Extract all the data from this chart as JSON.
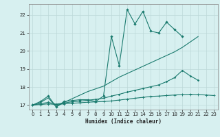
{
  "xlabel": "Humidex (Indice chaleur)",
  "x": [
    0,
    1,
    2,
    3,
    4,
    5,
    6,
    7,
    8,
    9,
    10,
    11,
    12,
    13,
    14,
    15,
    16,
    17,
    18,
    19,
    20,
    21,
    22,
    23
  ],
  "line1": [
    17.0,
    17.2,
    17.5,
    16.9,
    17.2,
    17.25,
    17.3,
    17.3,
    17.2,
    17.5,
    20.8,
    19.2,
    22.3,
    21.5,
    22.2,
    21.1,
    21.0,
    21.6,
    21.2,
    20.8,
    null,
    null,
    null,
    null
  ],
  "line2": [
    17.0,
    17.15,
    17.4,
    16.9,
    17.15,
    17.35,
    17.55,
    17.75,
    17.9,
    18.05,
    18.3,
    18.55,
    18.75,
    18.95,
    19.15,
    19.35,
    19.55,
    19.75,
    19.95,
    20.2,
    20.5,
    20.8,
    null,
    null
  ],
  "line3": [
    17.0,
    17.08,
    17.15,
    17.05,
    17.12,
    17.18,
    17.22,
    17.27,
    17.32,
    17.38,
    17.5,
    17.6,
    17.72,
    17.82,
    17.92,
    18.02,
    18.12,
    18.3,
    18.52,
    18.92,
    18.62,
    18.38,
    null,
    null
  ],
  "line4": [
    17.0,
    17.03,
    17.07,
    17.03,
    17.07,
    17.1,
    17.13,
    17.16,
    17.18,
    17.2,
    17.23,
    17.28,
    17.33,
    17.38,
    17.43,
    17.48,
    17.5,
    17.53,
    17.56,
    17.58,
    17.6,
    17.58,
    17.56,
    17.53
  ],
  "line_color": "#1a7a6e",
  "bg_color": "#d7f0f0",
  "grid_color": "#bcd8d8",
  "ylim": [
    16.75,
    22.6
  ],
  "xlim": [
    -0.5,
    23.5
  ],
  "yticks": [
    17,
    18,
    19,
    20,
    21,
    22
  ],
  "xticks": [
    0,
    1,
    2,
    3,
    4,
    5,
    6,
    7,
    8,
    9,
    10,
    11,
    12,
    13,
    14,
    15,
    16,
    17,
    18,
    19,
    20,
    21,
    22,
    23
  ]
}
